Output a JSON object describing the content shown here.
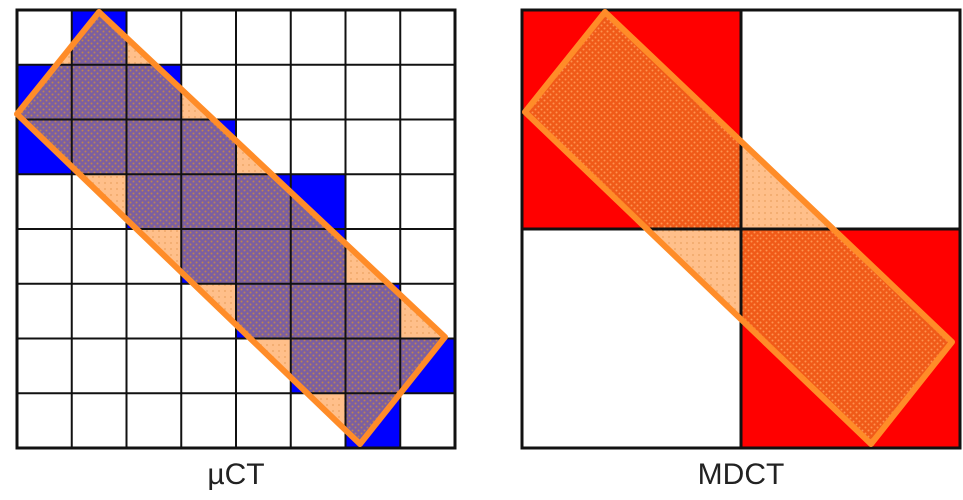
{
  "panels": [
    {
      "label": "µCT",
      "grid": 8,
      "cell_fill": "#0000ff",
      "overlay_fill": "#7b5fa0",
      "blue_cells": [
        [
          0,
          1
        ],
        [
          1,
          0
        ],
        [
          1,
          1
        ],
        [
          1,
          2
        ],
        [
          2,
          0
        ],
        [
          2,
          1
        ],
        [
          2,
          2
        ],
        [
          2,
          3
        ],
        [
          3,
          2
        ],
        [
          3,
          3
        ],
        [
          3,
          4
        ],
        [
          3,
          5
        ],
        [
          4,
          3
        ],
        [
          4,
          4
        ],
        [
          4,
          5
        ],
        [
          5,
          4
        ],
        [
          5,
          5
        ],
        [
          5,
          6
        ],
        [
          6,
          5
        ],
        [
          6,
          6
        ],
        [
          6,
          7
        ],
        [
          7,
          6
        ]
      ]
    },
    {
      "label": "MDCT",
      "grid": 2,
      "cell_fill": "#ff0000",
      "overlay_fill": "#ff5500",
      "blue_cells": [
        [
          0,
          0
        ],
        [
          1,
          1
        ]
      ]
    }
  ],
  "colors": {
    "outline": "#ff8c28",
    "triangle": "#ffbf8a",
    "border": "#111111"
  }
}
